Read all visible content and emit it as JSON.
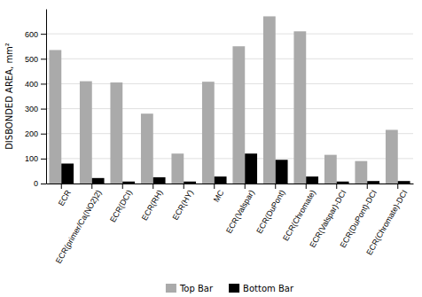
{
  "chart_data": {
    "type": "bar",
    "categories": [
      "ECR",
      "ECR(primer/Ca(NO2)2)",
      "ECR(DCI)",
      "ECR(RH)",
      "ECR(HY)",
      "MC",
      "ECR(Valspar)",
      "ECR(DuPont)",
      "ECR(Chromate)",
      "ECR(Valspar)-DCI",
      "ECR(DuPont)-DCI",
      "ECR(Chromate)-DCI"
    ],
    "series": [
      {
        "name": "Top Bar",
        "color": "#aaaaaa",
        "values": [
          535,
          410,
          405,
          280,
          120,
          408,
          550,
          670,
          610,
          115,
          90,
          215
        ]
      },
      {
        "name": "Bottom Bar",
        "color": "#000000",
        "values": [
          80,
          22,
          8,
          25,
          8,
          28,
          120,
          95,
          28,
          8,
          10,
          10
        ]
      }
    ],
    "ylabel": "DISBONDED AREA, mm²",
    "ylim": [
      0,
      700
    ],
    "yticks": [
      0,
      100,
      200,
      300,
      400,
      500,
      600
    ],
    "grid": true,
    "legend": "bottom"
  }
}
